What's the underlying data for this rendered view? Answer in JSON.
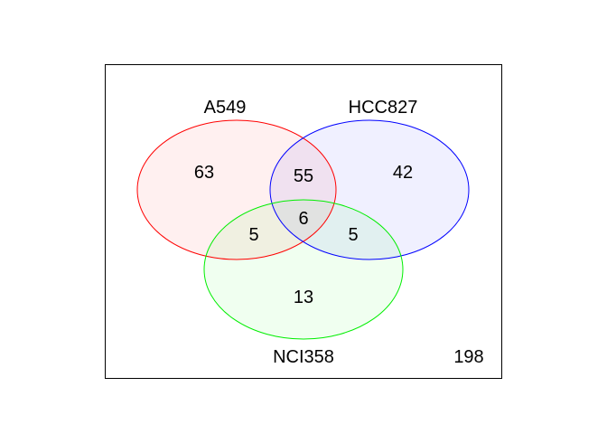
{
  "venn": {
    "sets": [
      {
        "id": "a549",
        "label": "A549",
        "stroke": "#ff0000",
        "fill": "#fff0f0"
      },
      {
        "id": "hcc827",
        "label": "HCC827",
        "stroke": "#0000ff",
        "fill": "#f0f0ff"
      },
      {
        "id": "nci358",
        "label": "NCI358",
        "stroke": "#00ee00",
        "fill": "#f0fff0"
      }
    ],
    "counts": {
      "a549_only": "63",
      "hcc827_only": "42",
      "nci358_only": "13",
      "a549_hcc827": "55",
      "a549_nci358": "5",
      "hcc827_nci358": "5",
      "all_three": "6",
      "none": "198"
    },
    "colors": {
      "frame": "#000000",
      "background": "#ffffff"
    }
  }
}
